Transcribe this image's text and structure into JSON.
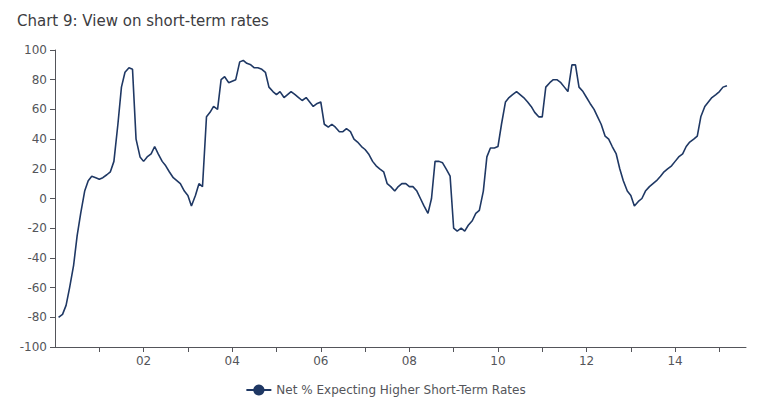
{
  "chart_data": {
    "type": "line",
    "title": "Chart 9: View on short-term rates",
    "xlim": [
      2000.0,
      2015.6
    ],
    "xticks": [
      {
        "value": 2001,
        "label": ""
      },
      {
        "value": 2002,
        "label": "02"
      },
      {
        "value": 2003,
        "label": ""
      },
      {
        "value": 2004,
        "label": "04"
      },
      {
        "value": 2005,
        "label": ""
      },
      {
        "value": 2006,
        "label": "06"
      },
      {
        "value": 2007,
        "label": ""
      },
      {
        "value": 2008,
        "label": "08"
      },
      {
        "value": 2009,
        "label": ""
      },
      {
        "value": 2010,
        "label": "10"
      },
      {
        "value": 2011,
        "label": ""
      },
      {
        "value": 2012,
        "label": "12"
      },
      {
        "value": 2013,
        "label": ""
      },
      {
        "value": 2014,
        "label": "14"
      },
      {
        "value": 2015,
        "label": ""
      }
    ],
    "ylim": [
      -100,
      100
    ],
    "yticks": [
      -100,
      -80,
      -60,
      -40,
      -20,
      0,
      20,
      40,
      60,
      80,
      100
    ],
    "grid": false,
    "legend": "bottom",
    "x": [
      2000.08,
      2000.17,
      2000.25,
      2000.33,
      2000.42,
      2000.5,
      2000.58,
      2000.67,
      2000.75,
      2000.83,
      2000.92,
      2001.0,
      2001.08,
      2001.17,
      2001.25,
      2001.33,
      2001.42,
      2001.5,
      2001.58,
      2001.67,
      2001.75,
      2001.83,
      2001.92,
      2002.0,
      2002.08,
      2002.17,
      2002.25,
      2002.33,
      2002.42,
      2002.5,
      2002.58,
      2002.67,
      2002.75,
      2002.83,
      2002.92,
      2003.0,
      2003.08,
      2003.17,
      2003.25,
      2003.33,
      2003.42,
      2003.5,
      2003.58,
      2003.67,
      2003.75,
      2003.83,
      2003.92,
      2004.0,
      2004.08,
      2004.17,
      2004.25,
      2004.33,
      2004.42,
      2004.5,
      2004.58,
      2004.67,
      2004.75,
      2004.83,
      2004.92,
      2005.0,
      2005.08,
      2005.17,
      2005.25,
      2005.33,
      2005.42,
      2005.5,
      2005.58,
      2005.67,
      2005.75,
      2005.83,
      2005.92,
      2006.0,
      2006.08,
      2006.17,
      2006.25,
      2006.33,
      2006.42,
      2006.5,
      2006.58,
      2006.67,
      2006.75,
      2006.83,
      2006.92,
      2007.0,
      2007.08,
      2007.17,
      2007.25,
      2007.33,
      2007.42,
      2007.5,
      2007.58,
      2007.67,
      2007.75,
      2007.83,
      2007.92,
      2008.0,
      2008.08,
      2008.17,
      2008.25,
      2008.33,
      2008.42,
      2008.5,
      2008.58,
      2008.67,
      2008.75,
      2008.83,
      2008.92,
      2009.0,
      2009.08,
      2009.17,
      2009.25,
      2009.33,
      2009.42,
      2009.5,
      2009.58,
      2009.67,
      2009.75,
      2009.83,
      2009.92,
      2010.0,
      2010.08,
      2010.17,
      2010.25,
      2010.33,
      2010.42,
      2010.5,
      2010.58,
      2010.67,
      2010.75,
      2010.83,
      2010.92,
      2011.0,
      2011.08,
      2011.17,
      2011.25,
      2011.33,
      2011.42,
      2011.5,
      2011.58,
      2011.67,
      2011.75,
      2011.83,
      2011.92,
      2012.0,
      2012.08,
      2012.17,
      2012.25,
      2012.33,
      2012.42,
      2012.5,
      2012.58,
      2012.67,
      2012.75,
      2012.83,
      2012.92,
      2013.0,
      2013.08,
      2013.17,
      2013.25,
      2013.33,
      2013.42,
      2013.5,
      2013.58,
      2013.67,
      2013.75,
      2013.83,
      2013.92,
      2014.0,
      2014.08,
      2014.17,
      2014.25,
      2014.33,
      2014.42,
      2014.5,
      2014.58,
      2014.67,
      2014.75,
      2014.83,
      2014.92,
      2015.0,
      2015.08,
      2015.17
    ],
    "series": [
      {
        "name": "Net % Expecting Higher Short-Term Rates",
        "color": "#1f3864",
        "values": [
          -80,
          -78,
          -72,
          -60,
          -45,
          -25,
          -10,
          5,
          12,
          15,
          14,
          13,
          14,
          16,
          18,
          25,
          50,
          75,
          85,
          88,
          87,
          40,
          28,
          25,
          28,
          30,
          35,
          30,
          25,
          22,
          18,
          14,
          12,
          10,
          5,
          2,
          -5,
          2,
          10,
          8,
          55,
          58,
          62,
          60,
          80,
          82,
          78,
          79,
          80,
          92,
          93,
          91,
          90,
          88,
          88,
          87,
          85,
          75,
          72,
          70,
          72,
          68,
          70,
          72,
          70,
          68,
          66,
          68,
          65,
          62,
          64,
          65,
          50,
          48,
          50,
          48,
          45,
          45,
          47,
          45,
          40,
          38,
          35,
          33,
          30,
          25,
          22,
          20,
          18,
          10,
          8,
          5,
          8,
          10,
          10,
          8,
          8,
          5,
          0,
          -5,
          -10,
          0,
          25,
          25,
          24,
          20,
          15,
          -20,
          -22,
          -20,
          -22,
          -18,
          -15,
          -10,
          -8,
          5,
          28,
          34,
          34,
          35,
          50,
          65,
          68,
          70,
          72,
          70,
          68,
          65,
          62,
          58,
          55,
          55,
          75,
          78,
          80,
          80,
          78,
          75,
          72,
          90,
          90,
          75,
          72,
          68,
          64,
          60,
          55,
          50,
          42,
          40,
          35,
          30,
          20,
          12,
          5,
          2,
          -5,
          -2,
          0,
          5,
          8,
          10,
          12,
          15,
          18,
          20,
          22,
          25,
          28,
          30,
          35,
          38,
          40,
          42,
          55,
          62,
          65,
          68,
          70,
          72,
          75,
          76
        ]
      }
    ]
  }
}
